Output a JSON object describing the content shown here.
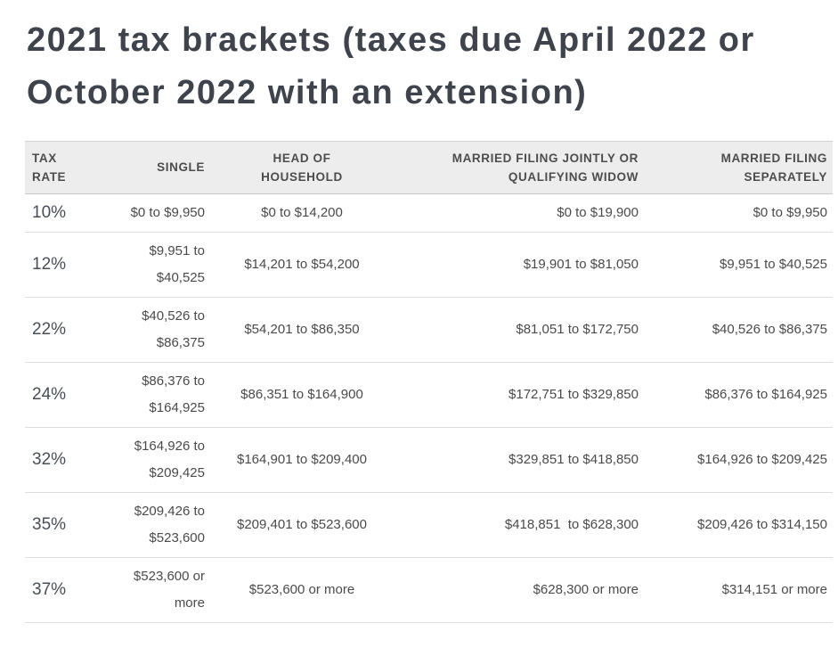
{
  "title": "2021 tax brackets (taxes due April 2022 or October 2022 with an extension)",
  "colors": {
    "title_text": "#3e434c",
    "header_bg": "#ededee",
    "header_text": "#4d4d4d",
    "body_text": "#4a4a4b",
    "row_divider": "#dbdcdc"
  },
  "table": {
    "columns": [
      {
        "label": "TAX RATE"
      },
      {
        "label": "SINGLE"
      },
      {
        "label": "HEAD OF HOUSEHOLD"
      },
      {
        "label": "MARRIED FILING JOINTLY OR QUALIFYING WIDOW"
      },
      {
        "label": "MARRIED FILING SEPARATELY"
      }
    ],
    "rows": [
      {
        "rate": "10%",
        "single": "$0 to $9,950",
        "hoh": "$0 to $14,200",
        "mfj": "$0 to $19,900",
        "mfs": "$0 to $9,950"
      },
      {
        "rate": "12%",
        "single": "$9,951 to $40,525",
        "hoh": "$14,201 to $54,200",
        "mfj": "$19,901 to $81,050",
        "mfs": "$9,951 to $40,525"
      },
      {
        "rate": "22%",
        "single": "$40,526 to $86,375",
        "hoh": "$54,201 to $86,350",
        "mfj": "$81,051 to $172,750",
        "mfs": "$40,526 to $86,375"
      },
      {
        "rate": "24%",
        "single": "$86,376 to $164,925",
        "hoh": "$86,351 to $164,900",
        "mfj": "$172,751 to $329,850",
        "mfs": "$86,376 to $164,925"
      },
      {
        "rate": "32%",
        "single": "$164,926 to $209,425",
        "hoh": "$164,901 to $209,400",
        "mfj": "$329,851 to $418,850",
        "mfs": "$164,926 to $209,425"
      },
      {
        "rate": "35%",
        "single": "$209,426 to $523,600",
        "hoh": "$209,401 to $523,600",
        "mfj": "$418,851  to $628,300",
        "mfs": "$209,426 to $314,150"
      },
      {
        "rate": "37%",
        "single": "$523,600 or more",
        "hoh": "$523,600 or more",
        "mfj": "$628,300 or more",
        "mfs": "$314,151 or more"
      }
    ]
  }
}
